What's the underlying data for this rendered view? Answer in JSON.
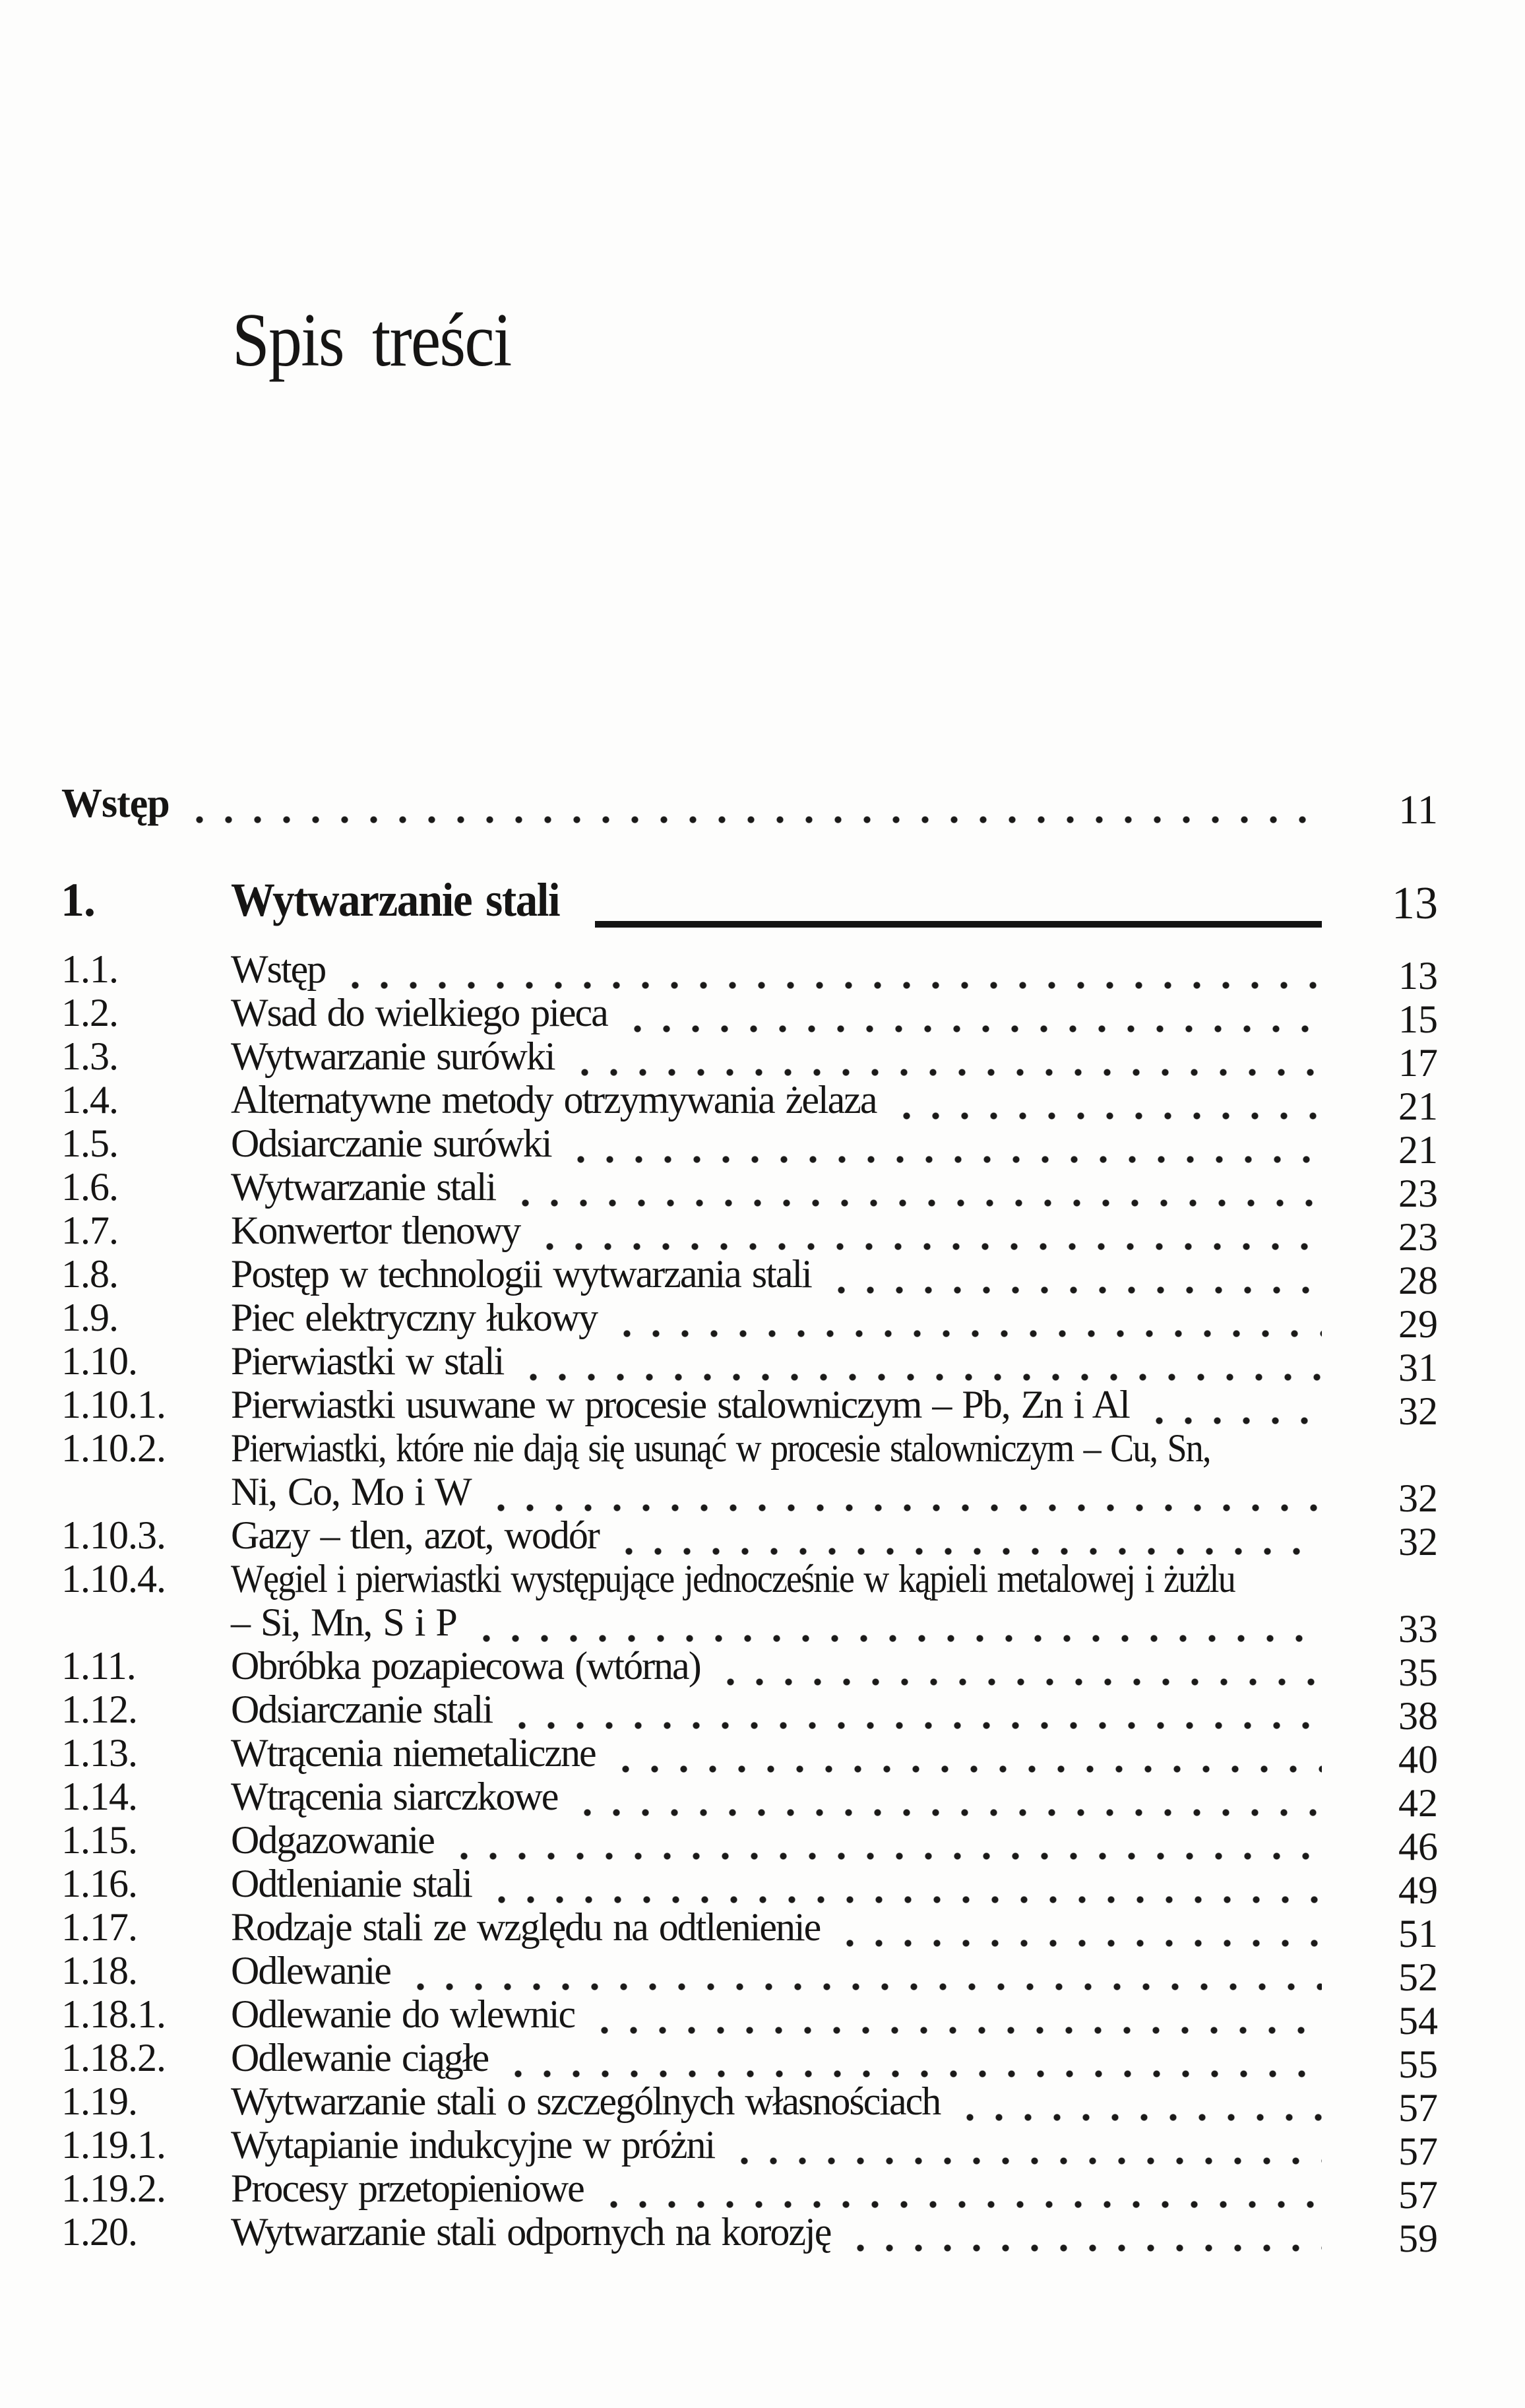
{
  "page_title": "Spis treści",
  "intro": {
    "label": "Wstęp",
    "page": "11"
  },
  "chapter": {
    "number": "1.",
    "title": "Wytwarzanie stali",
    "page": "13"
  },
  "entries": [
    {
      "num": "1.1.",
      "label": "Wstęp",
      "page": "13"
    },
    {
      "num": "1.2.",
      "label": "Wsad do wielkiego pieca",
      "page": "15"
    },
    {
      "num": "1.3.",
      "label": "Wytwarzanie surówki",
      "page": "17"
    },
    {
      "num": "1.4.",
      "label": "Alternatywne metody otrzymywania żelaza",
      "page": "21"
    },
    {
      "num": "1.5.",
      "label": "Odsiarczanie surówki",
      "page": "21"
    },
    {
      "num": "1.6.",
      "label": "Wytwarzanie stali",
      "page": "23"
    },
    {
      "num": "1.7.",
      "label": "Konwertor tlenowy",
      "page": "23"
    },
    {
      "num": "1.8.",
      "label": "Postęp w technologii wytwarzania stali",
      "page": "28"
    },
    {
      "num": "1.9.",
      "label": "Piec elektryczny łukowy",
      "page": "29"
    },
    {
      "num": "1.10.",
      "label": "Pierwiastki w stali",
      "page": "31"
    },
    {
      "num": "1.10.1.",
      "label": "Pierwiastki usuwane w procesie stalowniczym – Pb, Zn i Al",
      "page": "32"
    },
    {
      "num": "1.10.2.",
      "label": "Pierwiastki, które nie dają się usunąć w procesie stalowniczym – Cu, Sn,",
      "label2": "Ni, Co, Mo i W",
      "page": "32"
    },
    {
      "num": "1.10.3.",
      "label": "Gazy – tlen, azot, wodór",
      "page": "32"
    },
    {
      "num": "1.10.4.",
      "label": "Węgiel i pierwiastki występujące jednocześnie w kąpieli metalowej i żużlu",
      "label2": "– Si, Mn, S i P",
      "page": "33"
    },
    {
      "num": "1.11.",
      "label": "Obróbka pozapiecowa (wtórna)",
      "page": "35"
    },
    {
      "num": "1.12.",
      "label": "Odsiarczanie stali",
      "page": "38"
    },
    {
      "num": "1.13.",
      "label": "Wtrącenia niemetaliczne",
      "page": "40"
    },
    {
      "num": "1.14.",
      "label": "Wtrącenia siarczkowe",
      "page": "42"
    },
    {
      "num": "1.15.",
      "label": "Odgazowanie",
      "page": "46"
    },
    {
      "num": "1.16.",
      "label": "Odtlenianie stali",
      "page": "49"
    },
    {
      "num": "1.17.",
      "label": "Rodzaje stali ze względu na odtlenienie",
      "page": "51"
    },
    {
      "num": "1.18.",
      "label": "Odlewanie",
      "page": "52"
    },
    {
      "num": "1.18.1.",
      "label": "Odlewanie do wlewnic",
      "page": "54"
    },
    {
      "num": "1.18.2.",
      "label": "Odlewanie ciągłe",
      "page": "55"
    },
    {
      "num": "1.19.",
      "label": "Wytwarzanie stali o szczególnych własnościach",
      "page": "57"
    },
    {
      "num": "1.19.1.",
      "label": "Wytapianie indukcyjne w próżni",
      "page": "57"
    },
    {
      "num": "1.19.2.",
      "label": "Procesy przetopieniowe",
      "page": "57"
    },
    {
      "num": "1.20.",
      "label": "Wytwarzanie stali odpornych na korozję",
      "page": "59"
    }
  ],
  "colors": {
    "ink": "#161514",
    "paper": "#fdfdfc"
  }
}
